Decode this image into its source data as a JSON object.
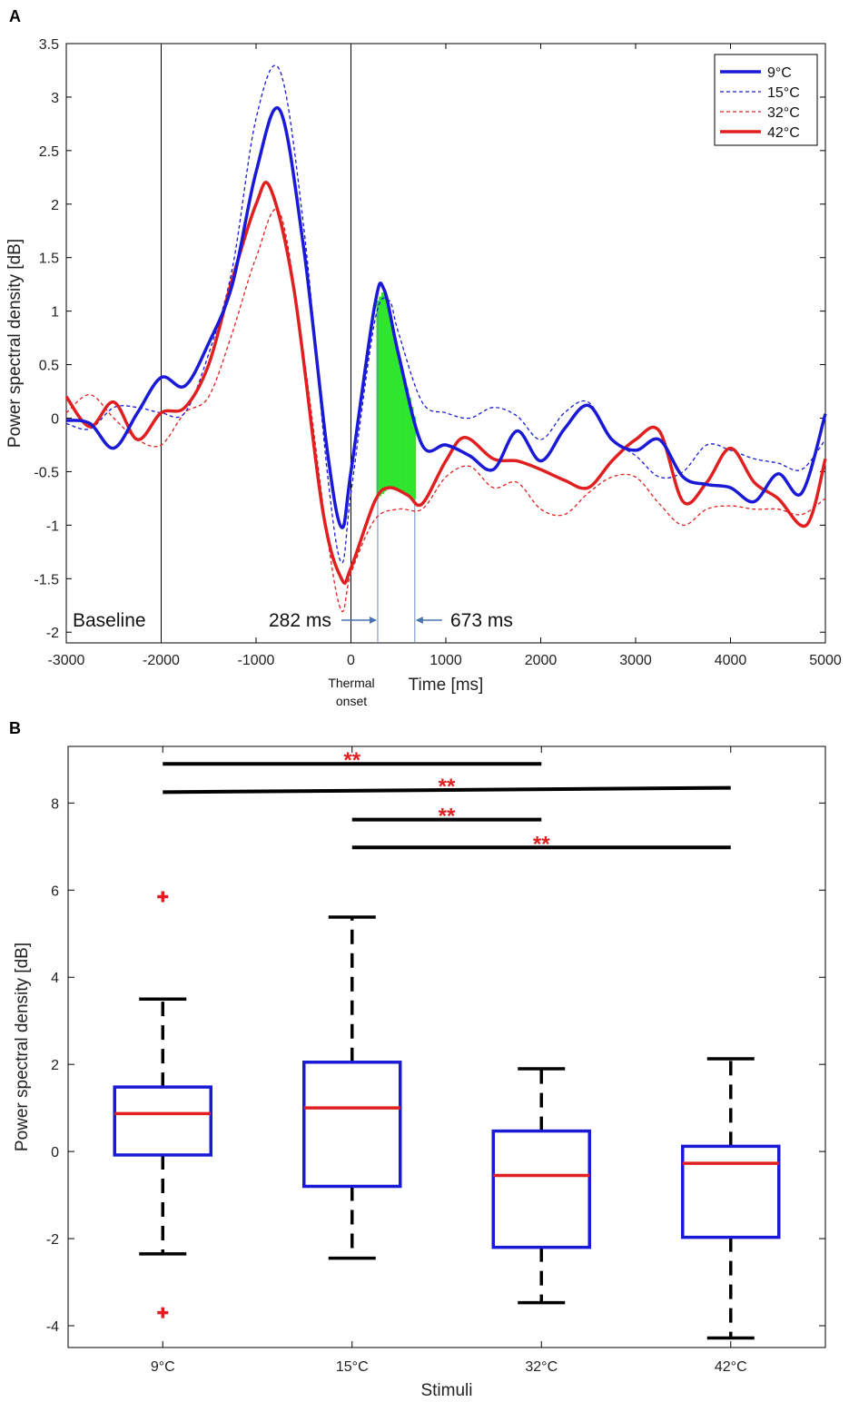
{
  "chart_data": [
    {
      "panel": "A",
      "type": "line",
      "xlabel": "Time [ms]",
      "ylabel": "Power spectral density [dB]",
      "xlim": [
        -3000,
        5000
      ],
      "ylim": [
        -2.1,
        3.5
      ],
      "xticks": [
        -3000,
        -2000,
        -1000,
        0,
        1000,
        2000,
        3000,
        4000,
        5000
      ],
      "yticks": [
        -2,
        -1.5,
        -1,
        -0.5,
        0,
        0.5,
        1,
        1.5,
        2,
        2.5,
        3,
        3.5
      ],
      "legend_position": "top-right",
      "series": [
        {
          "name": "9°C",
          "color": "#1a1ad6",
          "style": "solid-thick",
          "x": [
            -3000,
            -2750,
            -2500,
            -2250,
            -2000,
            -1750,
            -1500,
            -1250,
            -1000,
            -750,
            -500,
            -250,
            -100,
            0,
            250,
            350,
            500,
            750,
            1000,
            1250,
            1500,
            1750,
            2000,
            2250,
            2500,
            2750,
            3000,
            3250,
            3500,
            3750,
            4000,
            4250,
            4500,
            4750,
            5000
          ],
          "y": [
            -0.02,
            -0.05,
            -0.28,
            0.05,
            0.38,
            0.3,
            0.7,
            1.25,
            2.3,
            2.88,
            1.6,
            -0.3,
            -1.02,
            -0.5,
            1.05,
            1.2,
            0.6,
            -0.25,
            -0.25,
            -0.35,
            -0.48,
            -0.12,
            -0.4,
            -0.1,
            0.12,
            -0.2,
            -0.3,
            -0.2,
            -0.55,
            -0.62,
            -0.65,
            -0.78,
            -0.52,
            -0.7,
            0.04
          ]
        },
        {
          "name": "15°C",
          "color": "#1a1ad6",
          "style": "dashed-thin",
          "x": [
            -3000,
            -2750,
            -2500,
            -2250,
            -2000,
            -1750,
            -1500,
            -1250,
            -1000,
            -750,
            -500,
            -250,
            -100,
            0,
            250,
            400,
            500,
            750,
            1000,
            1250,
            1500,
            1750,
            2000,
            2250,
            2500,
            2750,
            3000,
            3250,
            3500,
            3750,
            4000,
            4250,
            4500,
            4750,
            5000
          ],
          "y": [
            -0.05,
            -0.1,
            0.1,
            0.1,
            0.05,
            0.05,
            0.6,
            1.4,
            2.8,
            3.25,
            1.8,
            -0.5,
            -1.35,
            -0.7,
            0.9,
            1.1,
            0.8,
            0.15,
            0.05,
            0.0,
            0.1,
            0.02,
            -0.2,
            0.05,
            0.15,
            -0.2,
            -0.35,
            -0.55,
            -0.5,
            -0.25,
            -0.3,
            -0.38,
            -0.42,
            -0.48,
            -0.2
          ]
        },
        {
          "name": "32°C",
          "color": "#e02020",
          "style": "dashed-thin",
          "x": [
            -3000,
            -2750,
            -2500,
            -2250,
            -2000,
            -1750,
            -1500,
            -1250,
            -1000,
            -750,
            -500,
            -250,
            -100,
            0,
            250,
            500,
            750,
            1000,
            1250,
            1500,
            1750,
            2000,
            2250,
            2500,
            2750,
            3000,
            3250,
            3500,
            3750,
            4000,
            4250,
            4500,
            4750,
            5000
          ],
          "y": [
            0.05,
            0.22,
            0.0,
            -0.2,
            -0.25,
            0.05,
            0.2,
            0.8,
            1.5,
            1.92,
            0.6,
            -1.1,
            -1.8,
            -1.45,
            -0.95,
            -0.85,
            -0.85,
            -0.55,
            -0.45,
            -0.65,
            -0.6,
            -0.85,
            -0.9,
            -0.7,
            -0.55,
            -0.55,
            -0.8,
            -1.0,
            -0.85,
            -0.82,
            -0.85,
            -0.85,
            -0.9,
            -0.75
          ]
        },
        {
          "name": "42°C",
          "color": "#e02020",
          "style": "solid-thick",
          "x": [
            -3000,
            -2750,
            -2500,
            -2250,
            -2000,
            -1750,
            -1500,
            -1250,
            -1000,
            -850,
            -600,
            -300,
            -100,
            0,
            250,
            400,
            600,
            750,
            1000,
            1200,
            1500,
            1750,
            2000,
            2250,
            2500,
            2750,
            3000,
            3250,
            3500,
            3750,
            4000,
            4250,
            4500,
            4800,
            5000
          ],
          "y": [
            0.2,
            -0.08,
            0.15,
            -0.2,
            0.05,
            0.1,
            0.5,
            1.3,
            2.0,
            2.15,
            1.2,
            -0.85,
            -1.5,
            -1.4,
            -0.78,
            -0.65,
            -0.72,
            -0.8,
            -0.4,
            -0.18,
            -0.38,
            -0.4,
            -0.48,
            -0.58,
            -0.65,
            -0.4,
            -0.2,
            -0.12,
            -0.78,
            -0.6,
            -0.28,
            -0.6,
            -0.75,
            -1.0,
            -0.38
          ]
        }
      ],
      "highlight_window": {
        "start": 282,
        "end": 673,
        "color": "#2ee62e"
      },
      "annotations": {
        "baseline": "Baseline",
        "window_start": "282 ms",
        "window_end": "673 ms",
        "thermal_onset_line1": "Thermal",
        "thermal_onset_line2": "onset"
      },
      "vertical_lines": [
        -2000,
        0
      ]
    },
    {
      "panel": "B",
      "type": "box",
      "xlabel": "Stimuli",
      "ylabel": "Power spectral density [dB]",
      "categories": [
        "9°C",
        "15°C",
        "32°C",
        "42°C"
      ],
      "ylim": [
        -4.5,
        9.3
      ],
      "yticks": [
        -4,
        -2,
        0,
        2,
        4,
        6,
        8
      ],
      "box_color": "#1a1ad6",
      "median_color": "#e02020",
      "boxes": [
        {
          "category": "9°C",
          "whisker_low": -2.35,
          "q1": -0.08,
          "median": 0.87,
          "q3": 1.48,
          "whisker_high": 3.5,
          "outliers": [
            5.85,
            -3.7
          ]
        },
        {
          "category": "15°C",
          "whisker_low": -2.45,
          "q1": -0.8,
          "median": 1.0,
          "q3": 2.05,
          "whisker_high": 5.38,
          "outliers": []
        },
        {
          "category": "32°C",
          "whisker_low": -3.47,
          "q1": -2.2,
          "median": -0.55,
          "q3": 0.47,
          "whisker_high": 1.9,
          "outliers": []
        },
        {
          "category": "42°C",
          "whisker_low": -4.28,
          "q1": -1.97,
          "median": -0.27,
          "q3": 0.12,
          "whisker_high": 2.13,
          "outliers": []
        }
      ],
      "significance": [
        {
          "from": "9°C",
          "to": "32°C",
          "y": 8.9,
          "label": "**"
        },
        {
          "from": "9°C",
          "to": "42°C",
          "y": 8.25,
          "y_end": 8.35,
          "label": "**"
        },
        {
          "from": "15°C",
          "to": "32°C",
          "y": 7.62,
          "label": "**"
        },
        {
          "from": "15°C",
          "to": "42°C",
          "y": 6.98,
          "label": "**"
        }
      ]
    }
  ]
}
